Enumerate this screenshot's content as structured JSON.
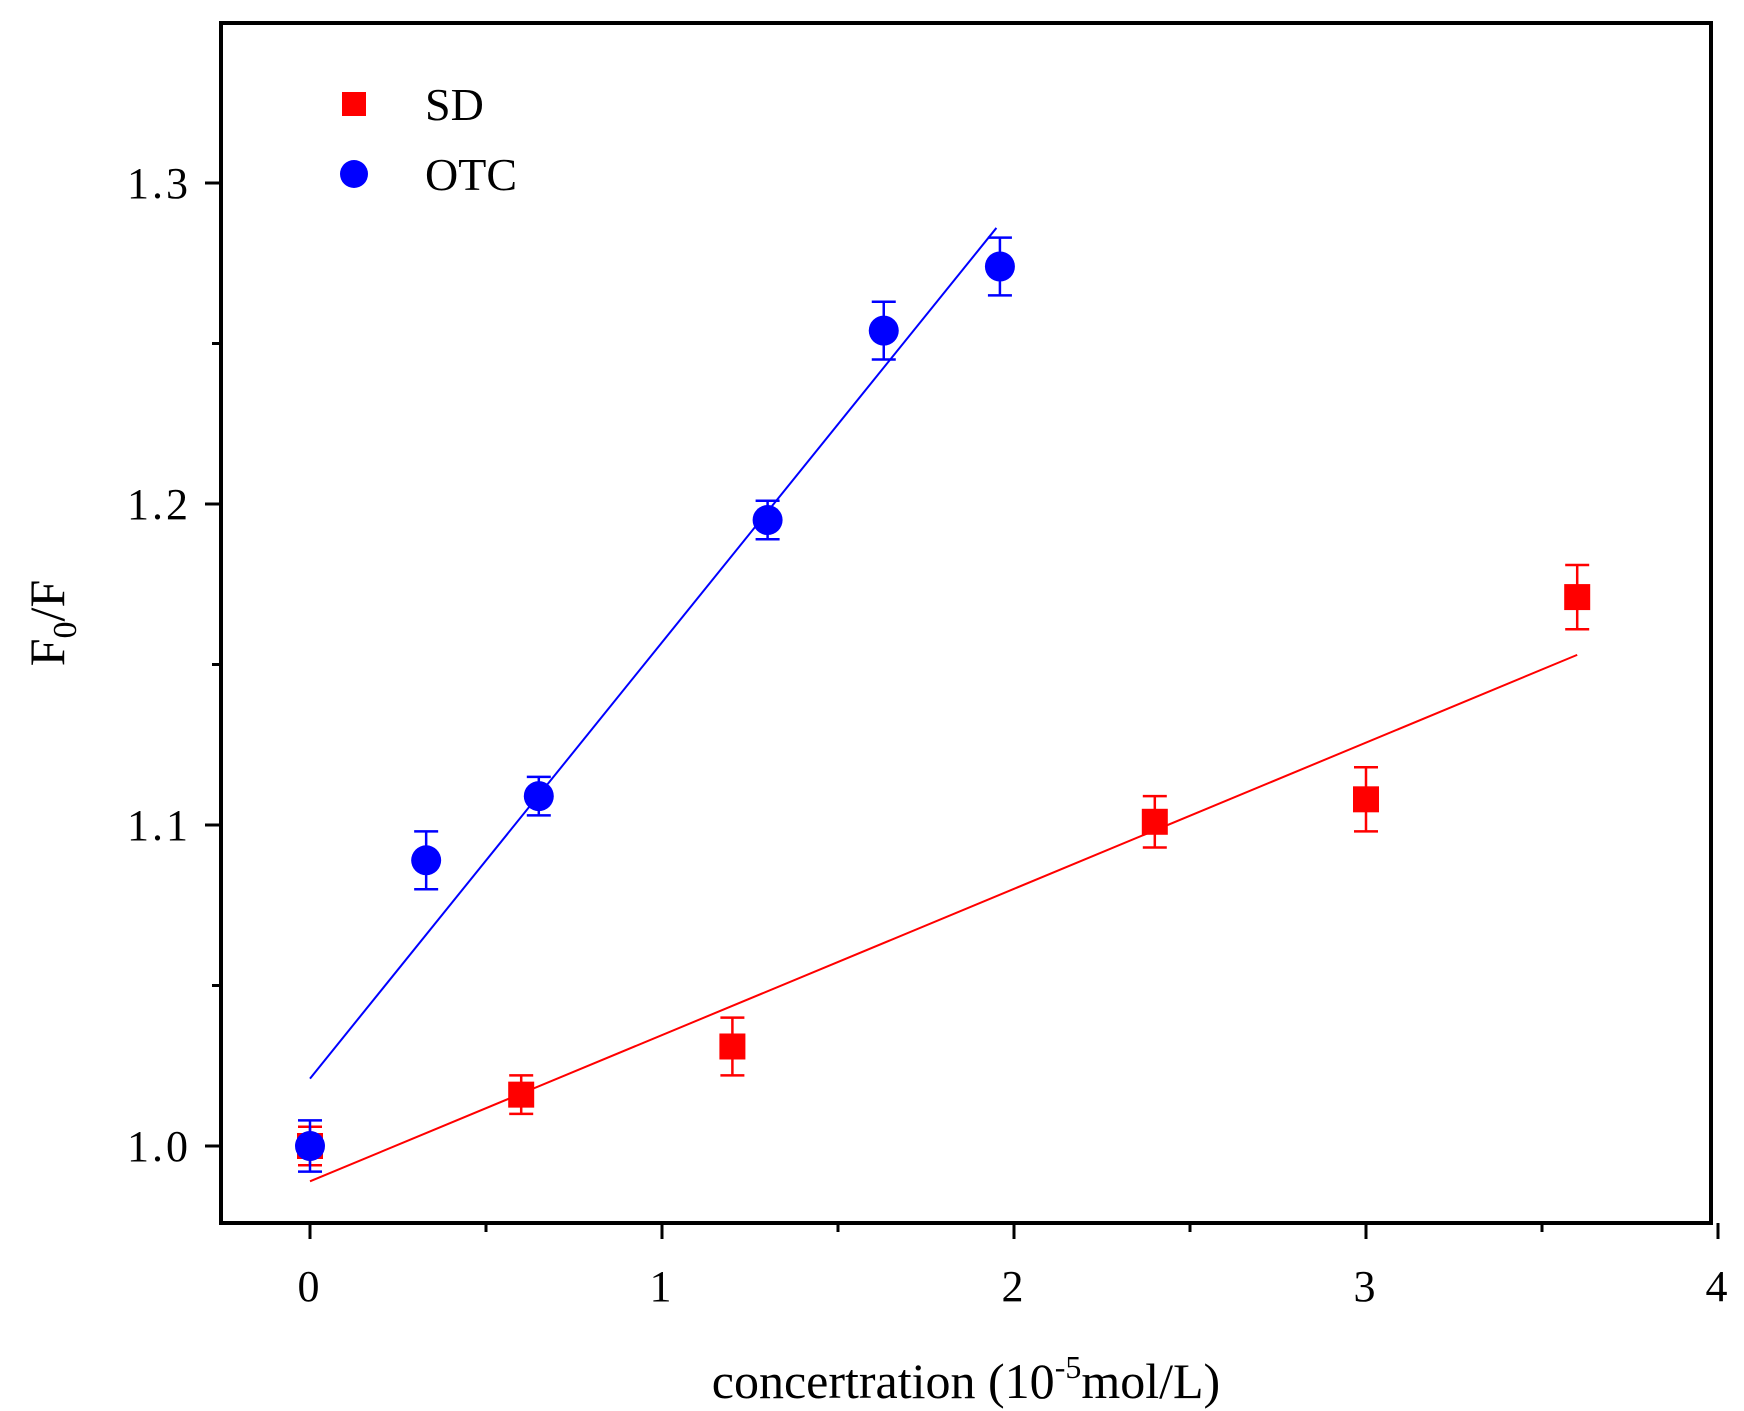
{
  "chart_data": {
    "type": "scatter",
    "xlabel": {
      "main": "concertration (10",
      "superscript": "-5",
      "rest": "mol/L)"
    },
    "ylabel": {
      "main": "F",
      "subscript": "0",
      "rest": "/F"
    },
    "xlim": [
      -0.25,
      4.0
    ],
    "ylim": [
      0.975,
      1.35
    ],
    "x_ticks": [
      0,
      1,
      2,
      3,
      4
    ],
    "x_tick_labels": [
      "0",
      "1",
      "2",
      "3",
      "4"
    ],
    "x_minor_ticks": [
      0.5,
      1.5,
      2.5,
      3.5
    ],
    "y_ticks": [
      1.0,
      1.1,
      1.2,
      1.3
    ],
    "y_tick_labels": [
      "1.0",
      "1.1",
      "1.2",
      "1.3"
    ],
    "y_minor_ticks": [
      1.05,
      1.15,
      1.25
    ],
    "grid": false,
    "legend_position": "top-left",
    "series": [
      {
        "name": "SD",
        "color": "#ff0000",
        "marker": "square",
        "x": [
          0,
          0.6,
          1.2,
          2.4,
          3.0,
          3.6
        ],
        "y": [
          1.0,
          1.016,
          1.031,
          1.101,
          1.108,
          1.171
        ],
        "error": [
          0.006,
          0.006,
          0.009,
          0.008,
          0.01,
          0.01
        ],
        "fit": {
          "x": [
            0,
            3.6
          ],
          "y": [
            0.989,
            1.153
          ]
        }
      },
      {
        "name": "OTC",
        "color": "#0000ff",
        "marker": "circle",
        "x": [
          0,
          0.33,
          0.65,
          1.3,
          1.63,
          1.96
        ],
        "y": [
          1.0,
          1.089,
          1.109,
          1.195,
          1.254,
          1.274
        ],
        "error": [
          0.008,
          0.009,
          0.006,
          0.006,
          0.009,
          0.009
        ],
        "fit": {
          "x": [
            0,
            1.95
          ],
          "y": [
            1.021,
            1.286
          ]
        }
      }
    ]
  }
}
